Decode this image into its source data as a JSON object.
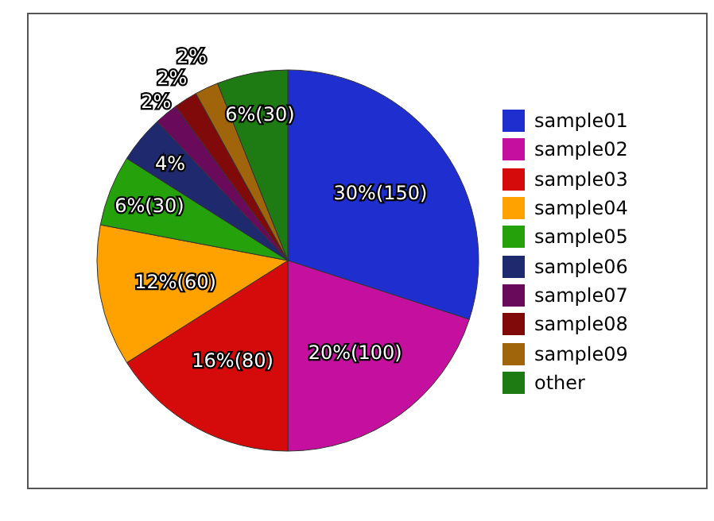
{
  "chart_data": {
    "type": "pie",
    "categories": [
      "sample01",
      "sample02",
      "sample03",
      "sample04",
      "sample05",
      "sample06",
      "sample07",
      "sample08",
      "sample09",
      "other"
    ],
    "values": [
      30,
      20,
      16,
      12,
      6,
      4,
      2,
      2,
      2,
      6
    ],
    "colors": [
      "#1f2ecf",
      "#c5109f",
      "#d50a0a",
      "#ffa200",
      "#25a10b",
      "#1f2a6e",
      "#6a0a5a",
      "#800a0a",
      "#a0640a",
      "#1e7a12"
    ],
    "value_labels": [
      "30%(150)",
      "20%(100)",
      "16%(80)",
      "12%(60)",
      "6%(30)",
      "4%",
      "2%",
      "2%",
      "2%",
      "6%(30)"
    ],
    "legend": "right"
  }
}
